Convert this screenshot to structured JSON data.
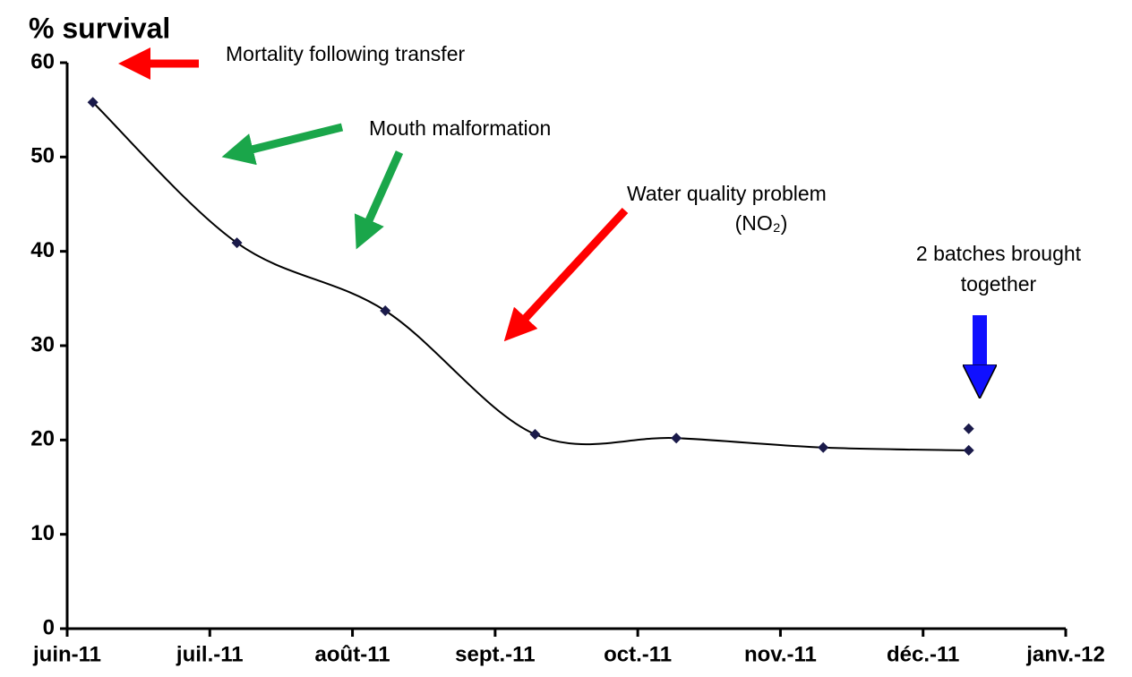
{
  "chart_data": {
    "type": "line",
    "ylabel": "% survival",
    "xlim": [
      0,
      7
    ],
    "xticks": [
      {
        "value": 0,
        "label": "juin-11"
      },
      {
        "value": 1,
        "label": "juil.-11"
      },
      {
        "value": 2,
        "label": "août-11"
      },
      {
        "value": 3,
        "label": "sept.-11"
      },
      {
        "value": 4,
        "label": "oct.-11"
      },
      {
        "value": 5,
        "label": "nov.-11"
      },
      {
        "value": 6,
        "label": "déc.-11"
      },
      {
        "value": 7,
        "label": "janv.-12"
      }
    ],
    "ylim": [
      0,
      60
    ],
    "yticks": [
      0,
      10,
      20,
      30,
      40,
      50,
      60
    ],
    "series": [
      {
        "color": "#1a1a4a",
        "x": [
          0.18,
          1.19,
          2.23,
          3.28,
          4.27,
          5.3,
          6.32
        ],
        "values": [
          55.8,
          40.9,
          33.7,
          20.6,
          20.2,
          19.2,
          18.9
        ],
        "smooth": true
      },
      {
        "color": "#1a1a4a",
        "x": [
          6.32
        ],
        "values": [
          21.2
        ]
      }
    ],
    "annotations": [
      "Mortality following transfer",
      "Mouth malformation",
      "Water quality problem",
      "(NO₂)",
      "2 batches brought",
      "together"
    ]
  }
}
